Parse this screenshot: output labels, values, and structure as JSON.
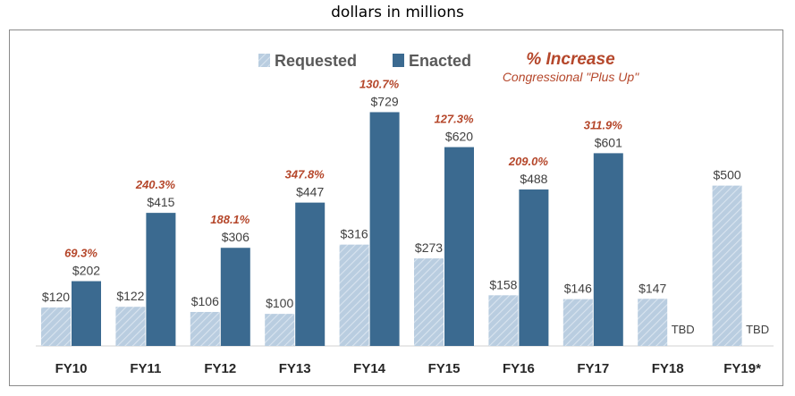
{
  "page_title": "dollars in millions",
  "legend": {
    "requested_label": "Requested",
    "enacted_label": "Enacted",
    "increase_title": "% Increase",
    "increase_subtitle": "Congressional \"Plus Up\""
  },
  "colors": {
    "requested": "#b9cde0",
    "requested_stripe": "#d9e4ef",
    "enacted": "#3b6a90",
    "increase": "#b5472b",
    "value_text": "#404040",
    "axis_text": "#262626"
  },
  "chart_data": {
    "type": "bar",
    "categories": [
      "FY10",
      "FY11",
      "FY12",
      "FY13",
      "FY14",
      "FY15",
      "FY16",
      "FY17",
      "FY18",
      "FY19*"
    ],
    "ylim": [
      0,
      800
    ],
    "series": [
      {
        "name": "Requested",
        "values": [
          120,
          122,
          106,
          100,
          316,
          273,
          158,
          146,
          147,
          500
        ],
        "labels": [
          "$120",
          "$122",
          "$106",
          "$100",
          "$316",
          "$273",
          "$158",
          "$146",
          "$147",
          "$500"
        ]
      },
      {
        "name": "Enacted",
        "values": [
          202,
          415,
          306,
          447,
          729,
          620,
          488,
          601,
          null,
          null
        ],
        "labels": [
          "$202",
          "$415",
          "$306",
          "$447",
          "$729",
          "$620",
          "$488",
          "$601",
          "TBD",
          "TBD"
        ]
      }
    ],
    "increase_labels": [
      "69.3%",
      "240.3%",
      "188.1%",
      "347.8%",
      "130.7%",
      "127.3%",
      "209.0%",
      "311.9%",
      "",
      ""
    ]
  }
}
